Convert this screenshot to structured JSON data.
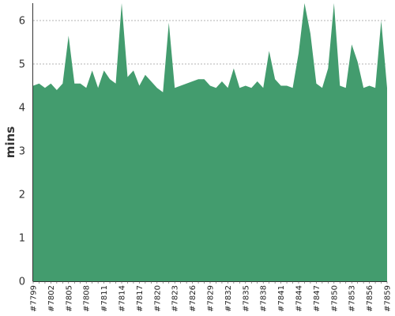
{
  "colors": {
    "fill": "#439c6e",
    "grid": "#9a9a9a",
    "axis": "#333333"
  },
  "chart_data": {
    "type": "area",
    "title": "",
    "xlabel": "",
    "ylabel": "mins",
    "ylim": [
      0,
      6.4
    ],
    "yticks": [
      0,
      1,
      2,
      3,
      4,
      5,
      6
    ],
    "grid": true,
    "legend": "none",
    "x": [
      "#7799",
      "#7800",
      "#7801",
      "#7802",
      "#7803",
      "#7804",
      "#7805",
      "#7806",
      "#7807",
      "#7808",
      "#7809",
      "#7810",
      "#7811",
      "#7812",
      "#7813",
      "#7814",
      "#7815",
      "#7816",
      "#7817",
      "#7818",
      "#7819",
      "#7820",
      "#7821",
      "#7822",
      "#7823",
      "#7824",
      "#7825",
      "#7826",
      "#7827",
      "#7828",
      "#7829",
      "#7830",
      "#7831",
      "#7832",
      "#7833",
      "#7834",
      "#7835",
      "#7836",
      "#7837",
      "#7838",
      "#7839",
      "#7840",
      "#7841",
      "#7842",
      "#7843",
      "#7844",
      "#7845",
      "#7846",
      "#7847",
      "#7848",
      "#7849",
      "#7850",
      "#7851",
      "#7852",
      "#7853",
      "#7854",
      "#7855",
      "#7856",
      "#7857",
      "#7858",
      "#7859"
    ],
    "xticks_shown": [
      "#7799",
      "#7802",
      "#7805",
      "#7808",
      "#7811",
      "#7814",
      "#7817",
      "#7820",
      "#7823",
      "#7826",
      "#7829",
      "#7832",
      "#7835",
      "#7838",
      "#7841",
      "#7844",
      "#7847",
      "#7850",
      "#7853",
      "#7856",
      "#7859"
    ],
    "series": [
      {
        "values": [
          4.5,
          4.55,
          4.45,
          4.55,
          4.4,
          4.55,
          5.65,
          4.55,
          4.55,
          4.45,
          4.85,
          4.45,
          4.85,
          4.65,
          4.55,
          6.4,
          4.7,
          4.85,
          4.5,
          4.75,
          4.6,
          4.45,
          4.35,
          5.95,
          4.45,
          4.5,
          4.55,
          4.6,
          4.65,
          4.65,
          4.5,
          4.45,
          4.6,
          4.45,
          4.9,
          4.45,
          4.5,
          4.45,
          4.6,
          4.45,
          5.3,
          4.65,
          4.5,
          4.5,
          4.45,
          5.25,
          6.4,
          5.7,
          4.55,
          4.45,
          4.9,
          6.4,
          4.5,
          4.45,
          5.45,
          5.05,
          4.45,
          4.5,
          4.45,
          6.0,
          4.45
        ]
      }
    ]
  }
}
